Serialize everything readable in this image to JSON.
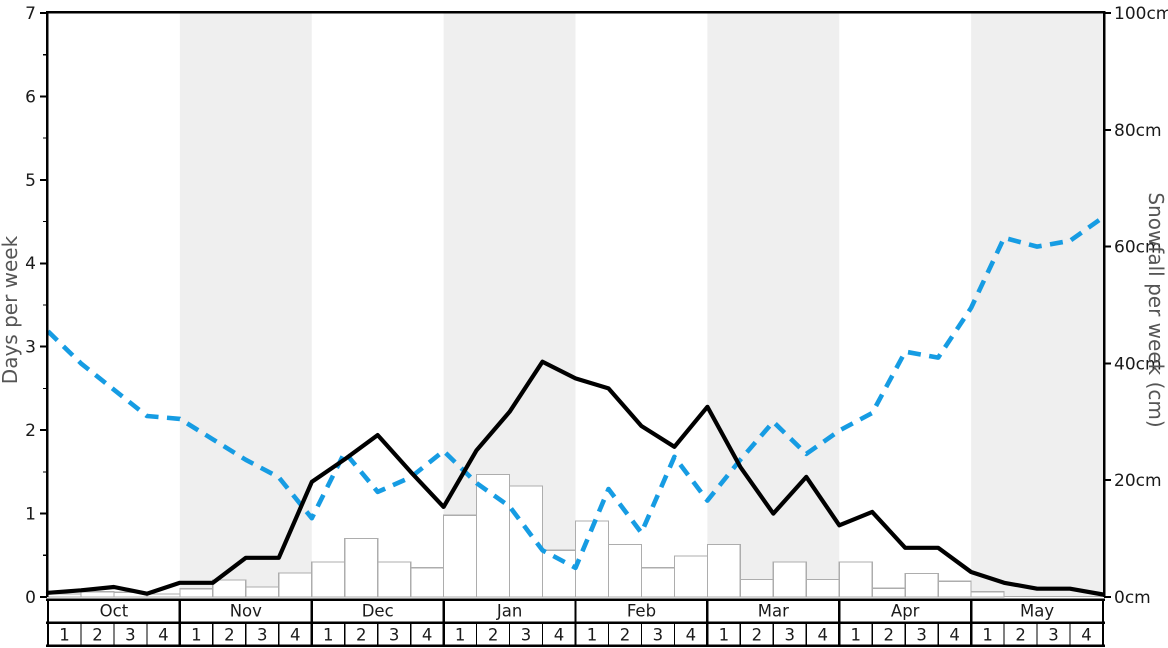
{
  "chart_data": {
    "type": "bar",
    "subtype": "bar+line combo, dual axis",
    "x_description": "8 months x 4 weeks; line series have 33 points drawn at week boundaries from start of Oct W1 to end of May W4",
    "months": [
      "Oct",
      "Nov",
      "Dec",
      "Jan",
      "Feb",
      "Mar",
      "Apr",
      "May"
    ],
    "week_labels": [
      "1",
      "2",
      "3",
      "4"
    ],
    "shaded_months": [
      "Nov",
      "Jan",
      "Mar",
      "May"
    ],
    "band_color": "#efefef",
    "left_axis": {
      "label": "Days per week",
      "min": 0,
      "max": 7,
      "tick_labels": [
        "0",
        "1",
        "2",
        "3",
        "4",
        "5",
        "6",
        "7"
      ],
      "minor_tick_step": 0.5
    },
    "right_axis": {
      "label": "Snowfall per week (cm)",
      "min": 0,
      "max": 100,
      "tick_values": [
        0,
        20,
        40,
        60,
        80,
        100
      ],
      "tick_labels": [
        "0cm",
        "20cm",
        "40cm",
        "60cm",
        "80cm",
        "100cm"
      ]
    },
    "series": [
      {
        "name": "snowfall-bars",
        "kind": "bar",
        "axis": "right",
        "unit": "cm",
        "fill": "#ffffff",
        "stroke": "#adadad",
        "values": [
          0.5,
          0.9,
          0.8,
          0.5,
          1.4,
          2.9,
          1.7,
          4.1,
          6,
          10,
          6,
          5,
          14,
          21,
          19,
          8,
          13,
          9,
          5,
          7,
          9,
          3,
          6,
          3,
          6,
          1.5,
          4,
          2.7,
          0.9,
          0,
          0,
          0
        ]
      },
      {
        "name": "days-per-week-line",
        "kind": "line",
        "axis": "left",
        "style": "solid",
        "color": "#000000",
        "values": [
          0.05,
          0.08,
          0.12,
          0.04,
          0.17,
          0.17,
          0.47,
          0.47,
          1.38,
          1.65,
          1.94,
          1.5,
          1.08,
          1.76,
          2.22,
          2.82,
          2.62,
          2.5,
          2.05,
          1.8,
          2.28,
          1.56,
          1.0,
          1.44,
          0.86,
          1.02,
          0.59,
          0.59,
          0.3,
          0.17,
          0.1,
          0.1,
          0.03
        ]
      },
      {
        "name": "snowfall-per-week-line",
        "kind": "line",
        "axis": "right",
        "unit": "cm",
        "style": "dashed",
        "color": "#169CE3",
        "values": [
          45.5,
          40,
          35.5,
          31,
          30.5,
          27,
          23.5,
          20.5,
          13.5,
          24.8,
          18,
          20.5,
          25,
          19.5,
          15.5,
          8,
          5,
          18.5,
          11,
          24,
          16.5,
          23.5,
          30,
          24.5,
          28.5,
          31.5,
          42,
          41,
          49.5,
          61.5,
          60,
          61,
          65
        ]
      }
    ],
    "text_color": "#1a1a1a",
    "axis_title_color": "#555555",
    "spine_color": "#000000"
  }
}
